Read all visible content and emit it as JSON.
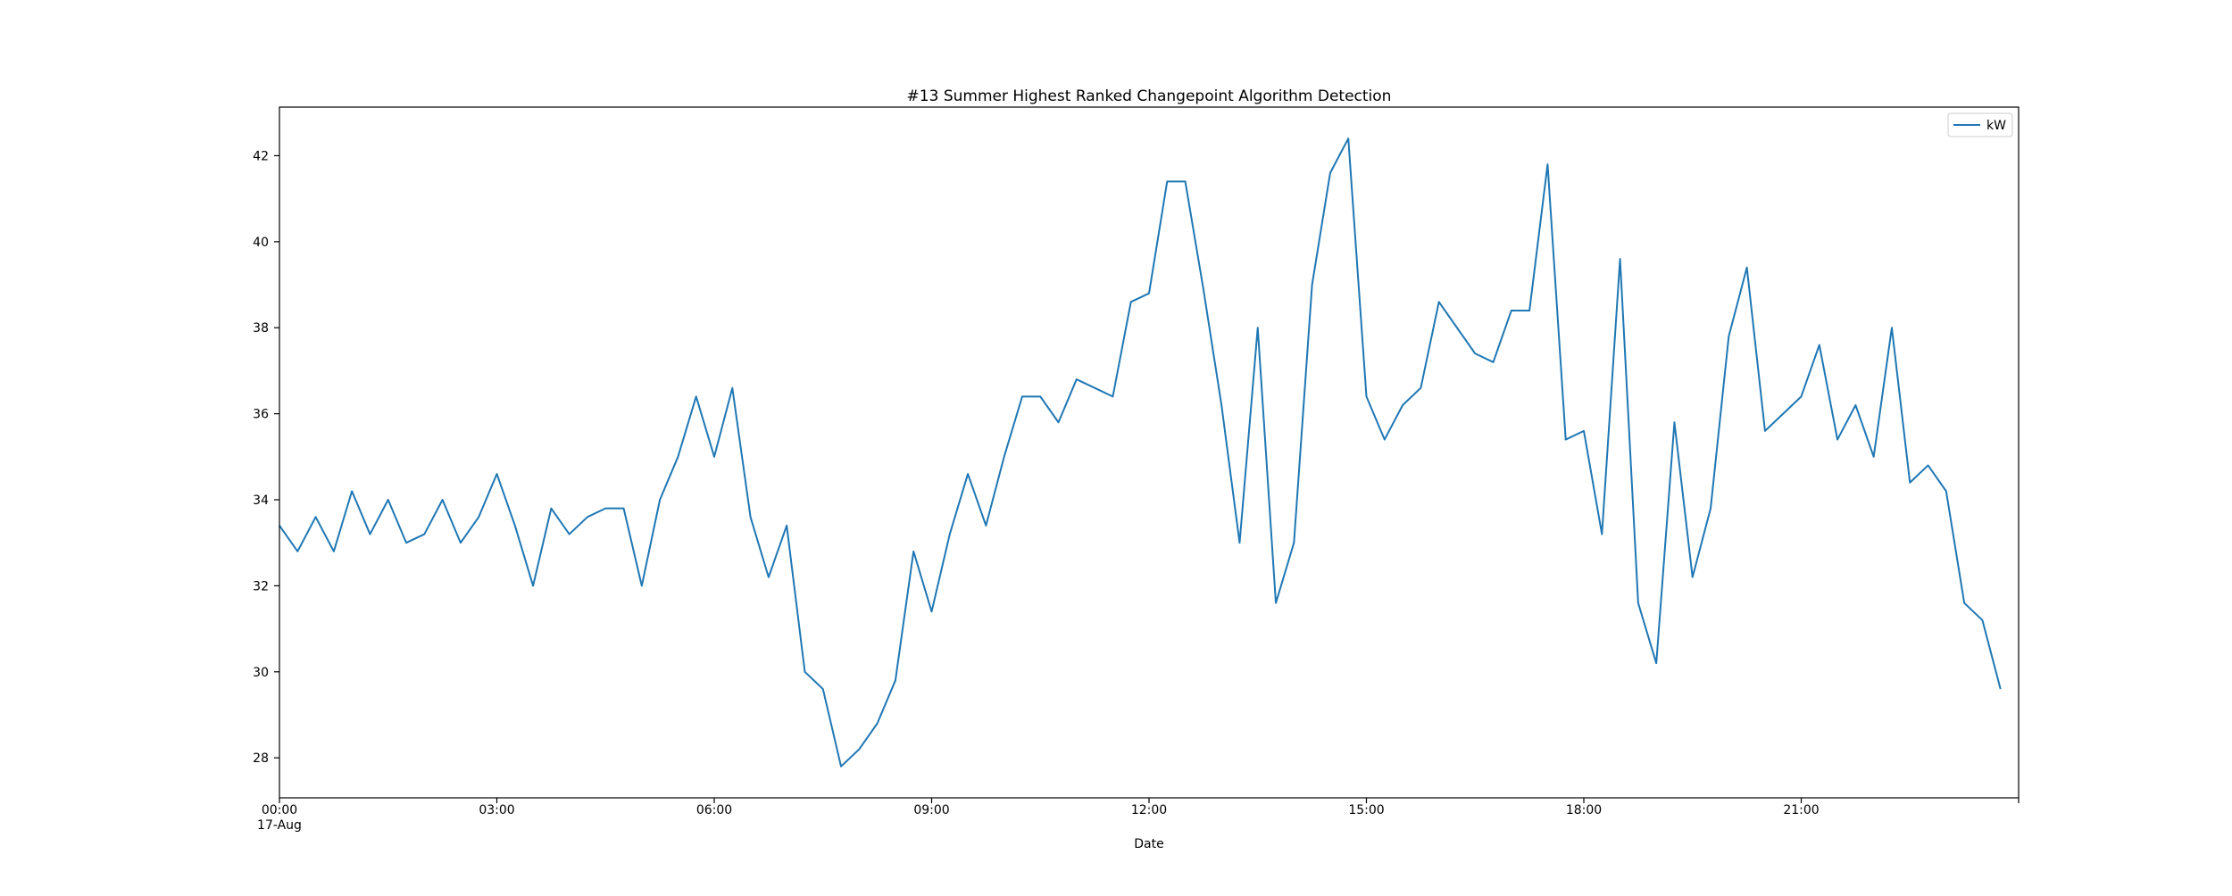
{
  "chart_data": {
    "type": "line",
    "title": "#13 Summer Highest Ranked Changepoint Algorithm Detection",
    "xlabel": "Date",
    "ylabel": "",
    "x_tick_labels": [
      "00:00",
      "03:00",
      "06:00",
      "09:00",
      "12:00",
      "15:00",
      "18:00",
      "21:00"
    ],
    "x_secondary_label": "17-Aug",
    "y_tick_labels": [
      "28",
      "30",
      "32",
      "34",
      "36",
      "38",
      "40",
      "42"
    ],
    "y_ticks": [
      28,
      30,
      32,
      34,
      36,
      38,
      40,
      42
    ],
    "ylim": [
      27.07,
      43.13
    ],
    "xlim": [
      "2023-08-17 00:00",
      "2023-08-18 00:00"
    ],
    "x_interval_minutes": 15,
    "legend": {
      "position": "top-right",
      "entries": [
        "kW"
      ]
    },
    "grid": false,
    "series": [
      {
        "name": "kW",
        "color": "#1f77b4",
        "values": [
          33.4,
          32.8,
          33.6,
          32.8,
          34.2,
          33.2,
          34.0,
          33.0,
          33.2,
          34.0,
          33.0,
          33.6,
          34.6,
          33.4,
          32.0,
          33.8,
          33.2,
          33.6,
          33.8,
          33.8,
          32.0,
          34.0,
          35.0,
          36.4,
          35.0,
          36.6,
          33.6,
          32.2,
          33.4,
          30.0,
          29.6,
          27.8,
          28.2,
          28.8,
          29.8,
          32.8,
          31.4,
          33.2,
          34.6,
          33.4,
          35.0,
          36.4,
          36.4,
          35.8,
          36.8,
          36.6,
          36.4,
          38.6,
          38.8,
          41.4,
          41.4,
          38.9,
          36.2,
          33.0,
          38.0,
          31.6,
          33.0,
          39.0,
          41.6,
          42.4,
          36.4,
          35.4,
          36.2,
          36.6,
          38.6,
          38.0,
          37.4,
          37.2,
          38.4,
          38.4,
          41.8,
          35.4,
          35.6,
          33.2,
          39.6,
          31.6,
          30.2,
          35.8,
          32.2,
          33.8,
          37.8,
          39.4,
          35.6,
          36.0,
          36.4,
          37.6,
          35.4,
          36.2,
          35.0,
          38.0,
          34.4,
          34.8,
          34.2,
          31.6,
          31.2,
          29.6
        ]
      }
    ]
  }
}
